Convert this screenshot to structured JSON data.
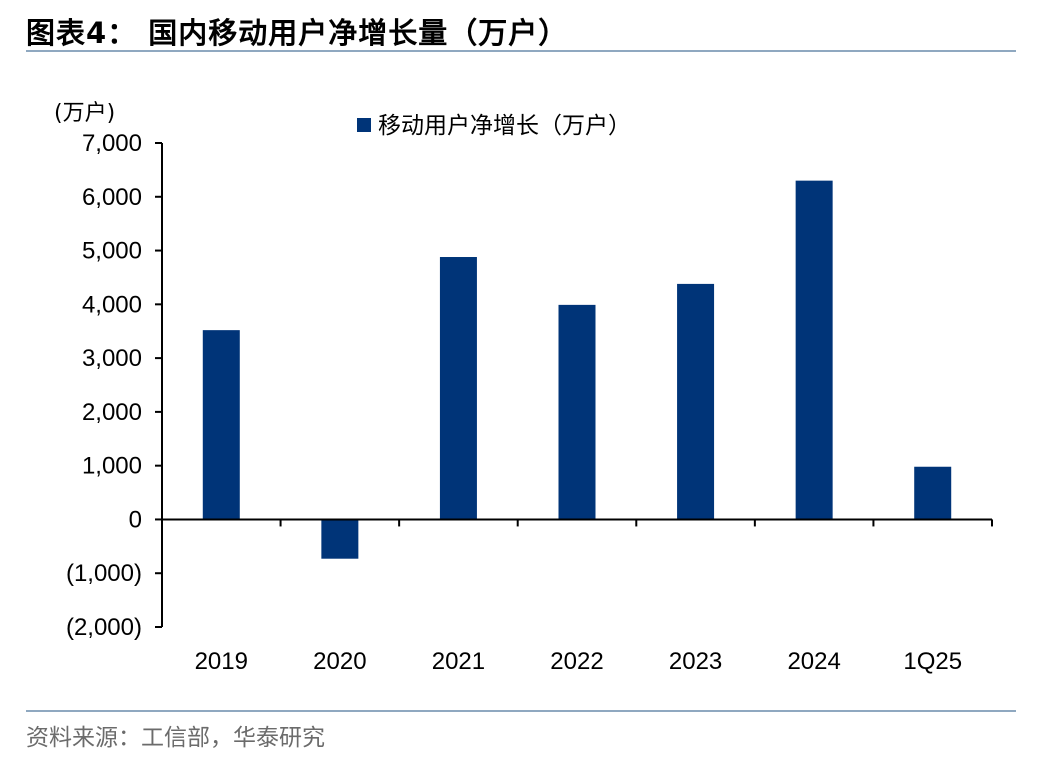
{
  "figure": {
    "title": "图表4：  国内移动用户净增长量（万户）",
    "source": "资料来源：工信部，华泰研究"
  },
  "colors": {
    "bar": "#003478",
    "axis": "#000000",
    "rule": "#8fa8c0"
  },
  "chart_data": {
    "type": "bar",
    "categories": [
      "2019",
      "2020",
      "2021",
      "2022",
      "2023",
      "2024",
      "1Q25"
    ],
    "series": [
      {
        "name": "移动用户净增长（万户）",
        "values": [
          3520,
          -730,
          4880,
          3990,
          4380,
          6300,
          980
        ]
      }
    ],
    "unit_label": "(万户)",
    "ylim": [
      -2000,
      7000
    ],
    "yticks": [
      7000,
      6000,
      5000,
      4000,
      3000,
      2000,
      1000,
      0,
      -1000,
      -2000
    ],
    "ytick_labels": [
      "7,000",
      "6,000",
      "5,000",
      "4,000",
      "3,000",
      "2,000",
      "1,000",
      "0",
      "(1,000)",
      "(2,000)"
    ],
    "grid": false,
    "legend": "top-center"
  }
}
